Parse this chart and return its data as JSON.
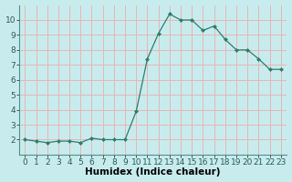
{
  "x": [
    0,
    1,
    2,
    3,
    4,
    5,
    6,
    7,
    8,
    9,
    10,
    11,
    12,
    13,
    14,
    15,
    16,
    17,
    18,
    19,
    20,
    21,
    22,
    23
  ],
  "y": [
    2.0,
    1.9,
    1.8,
    1.9,
    1.9,
    1.8,
    2.1,
    2.0,
    2.0,
    2.0,
    3.9,
    7.4,
    9.1,
    10.4,
    10.0,
    10.0,
    9.3,
    9.6,
    8.7,
    8.0,
    8.0,
    7.4,
    6.7,
    6.7
  ],
  "xlabel": "Humidex (Indice chaleur)",
  "bg_color": "#c8eced",
  "grid_color": "#e8b4b8",
  "line_color": "#2e7d6e",
  "marker_color": "#2e7d6e",
  "xlim": [
    -0.5,
    23.5
  ],
  "ylim": [
    1,
    11
  ],
  "yticks": [
    2,
    3,
    4,
    5,
    6,
    7,
    8,
    9,
    10
  ],
  "xticks": [
    0,
    1,
    2,
    3,
    4,
    5,
    6,
    7,
    8,
    9,
    10,
    11,
    12,
    13,
    14,
    15,
    16,
    17,
    18,
    19,
    20,
    21,
    22,
    23
  ],
  "tick_fontsize": 6.5,
  "xlabel_fontsize": 7.5
}
